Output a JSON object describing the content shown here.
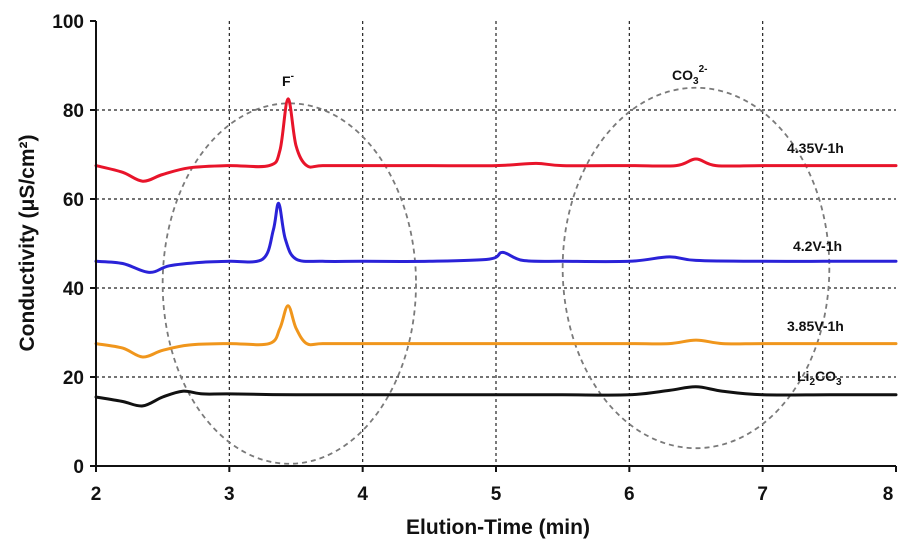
{
  "chart_data": {
    "type": "line",
    "xlabel": "Elution-Time (min)",
    "ylabel": "Conductivity (μS/cm²)",
    "xlim": [
      2,
      8
    ],
    "ylim": [
      0,
      100
    ],
    "xticks": [
      "2",
      "3",
      "4",
      "5",
      "6",
      "7",
      "8"
    ],
    "yticks": [
      "0",
      "20",
      "40",
      "60",
      "80",
      "100"
    ],
    "grid": true,
    "series": [
      {
        "name": "4.35V-1h",
        "color": "#e8142a",
        "x": [
          2.0,
          2.2,
          2.35,
          2.5,
          2.7,
          3.0,
          3.3,
          3.38,
          3.44,
          3.5,
          3.58,
          3.7,
          4.0,
          4.5,
          5.0,
          5.3,
          5.5,
          6.0,
          6.35,
          6.5,
          6.65,
          7.0,
          7.5,
          8.0
        ],
        "y": [
          67.5,
          66,
          64,
          65.5,
          67,
          67.5,
          67.5,
          71,
          82.5,
          72,
          67.5,
          67.5,
          67.5,
          67.5,
          67.5,
          68,
          67.5,
          67.5,
          67.5,
          69,
          67.5,
          67.5,
          67.5,
          67.5
        ]
      },
      {
        "name": "4.2V-1h",
        "color": "#2a22d8",
        "x": [
          2.0,
          2.2,
          2.4,
          2.55,
          2.8,
          3.0,
          3.25,
          3.33,
          3.37,
          3.42,
          3.5,
          3.7,
          4.0,
          4.5,
          4.95,
          5.05,
          5.2,
          5.5,
          6.0,
          6.3,
          6.5,
          7.0,
          7.5,
          8.0
        ],
        "y": [
          46,
          45.5,
          43.5,
          45,
          45.8,
          46,
          46.5,
          53,
          59,
          51,
          46.5,
          46,
          46,
          46,
          46.5,
          48,
          46.2,
          46,
          46,
          47,
          46.2,
          46,
          46,
          46
        ]
      },
      {
        "name": "3.85V-1h",
        "color": "#f0961c",
        "x": [
          2.0,
          2.2,
          2.35,
          2.5,
          2.7,
          3.0,
          3.3,
          3.38,
          3.44,
          3.5,
          3.58,
          3.7,
          4.0,
          4.5,
          5.0,
          5.5,
          6.0,
          6.3,
          6.5,
          6.7,
          7.0,
          7.5,
          8.0
        ],
        "y": [
          27.5,
          26.5,
          24.5,
          26,
          27.2,
          27.5,
          27.5,
          31,
          36,
          31,
          27.5,
          27.5,
          27.5,
          27.5,
          27.5,
          27.5,
          27.5,
          27.5,
          28.3,
          27.5,
          27.5,
          27.5,
          27.5
        ]
      },
      {
        "name": "Li₂CO₃",
        "color": "#111111",
        "x": [
          2.0,
          2.2,
          2.35,
          2.5,
          2.65,
          2.8,
          3.0,
          3.5,
          4.0,
          4.5,
          5.0,
          5.5,
          6.0,
          6.3,
          6.5,
          6.7,
          7.0,
          7.5,
          8.0
        ],
        "y": [
          15.5,
          14.5,
          13.5,
          15.5,
          16.8,
          16.2,
          16.2,
          16,
          16,
          16,
          16,
          16,
          16,
          17,
          17.8,
          16.8,
          16,
          16,
          16
        ]
      }
    ],
    "annotations": [
      {
        "label": "F⁻",
        "center_x": 3.45,
        "center_y": 41,
        "rx": 0.95,
        "ry": 40.5
      },
      {
        "label": "CO₃²⁻",
        "center_x": 6.5,
        "center_y": 44.5,
        "rx": 1.0,
        "ry": 40.5
      }
    ]
  },
  "labels": {
    "f_main": "F",
    "f_sup": "-",
    "co_main": "CO",
    "co_sub": "3",
    "co_sup": "2-",
    "s1": "4.35V-1h",
    "s2": "4.2V-1h",
    "s3": "3.85V-1h",
    "s4_a": "Li",
    "s4_b": "2",
    "s4_c": "CO",
    "s4_d": "3"
  }
}
